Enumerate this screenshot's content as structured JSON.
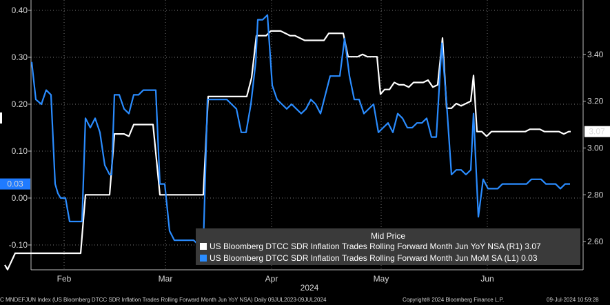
{
  "chart_data": {
    "type": "line",
    "xlabel": "2024",
    "x_tick_labels": [
      "Feb",
      "Mar",
      "Apr",
      "May",
      "Jun"
    ],
    "left_axis": {
      "ticks": [
        "-0.10",
        "0.00",
        "0.10",
        "0.20",
        "0.30",
        "0.40"
      ],
      "ylim": [
        -0.15,
        0.42
      ]
    },
    "right_axis": {
      "ticks": [
        "2.60",
        "2.80",
        "3.00",
        "3.20",
        "3.40"
      ],
      "ylim": [
        2.46,
        3.57
      ]
    },
    "last_value_labels": {
      "left": "0.03",
      "right": "3.07"
    },
    "legend": {
      "title": "Mid Price",
      "entries": [
        "US Bloomberg DTCC SDR Inflation Trades Rolling Forward Month Jun YoY NSA  (R1) 3.07",
        "US Bloomberg DTCC SDR Inflation Trades Rolling Forward Month Jun MoM SA  (L1)  0.03"
      ]
    },
    "series": [
      {
        "axis": "right",
        "color": "#ffffff",
        "values": [
          [
            7,
            2.5
          ],
          [
            11,
            2.48
          ],
          [
            22,
            2.55
          ],
          [
            25,
            2.55
          ],
          [
            38,
            2.55
          ],
          [
            41,
            2.55
          ],
          [
            57,
            2.55
          ],
          [
            60,
            2.55
          ],
          [
            73,
            2.55
          ],
          [
            76,
            2.55
          ],
          [
            86,
            2.55
          ],
          [
            90,
            2.55
          ],
          [
            95,
            2.55
          ],
          [
            101,
            2.55
          ],
          [
            110,
            2.55
          ],
          [
            117,
            2.55
          ],
          [
            124,
            2.8
          ],
          [
            131,
            2.8
          ],
          [
            138,
            2.8
          ],
          [
            145,
            2.8
          ],
          [
            152,
            2.8
          ],
          [
            159,
            2.8
          ],
          [
            166,
            3.06
          ],
          [
            173,
            3.06
          ],
          [
            180,
            3.06
          ],
          [
            187,
            3.05
          ],
          [
            194,
            3.1
          ],
          [
            201,
            3.1
          ],
          [
            208,
            3.1
          ],
          [
            215,
            3.1
          ],
          [
            222,
            3.1
          ],
          [
            232,
            2.8
          ],
          [
            239,
            2.8
          ],
          [
            246,
            2.8
          ],
          [
            253,
            2.8
          ],
          [
            260,
            2.8
          ],
          [
            267,
            2.8
          ],
          [
            274,
            2.8
          ],
          [
            281,
            2.8
          ],
          [
            288,
            2.8
          ],
          [
            295,
            2.8
          ],
          [
            302,
            3.22
          ],
          [
            309,
            3.22
          ],
          [
            316,
            3.22
          ],
          [
            323,
            3.22
          ],
          [
            330,
            3.22
          ],
          [
            337,
            3.22
          ],
          [
            344,
            3.22
          ],
          [
            351,
            3.22
          ],
          [
            358,
            3.22
          ],
          [
            365,
            3.3
          ],
          [
            372,
            3.48
          ],
          [
            379,
            3.48
          ],
          [
            386,
            3.48
          ],
          [
            393,
            3.5
          ],
          [
            400,
            3.5
          ],
          [
            407,
            3.5
          ],
          [
            414,
            3.49
          ],
          [
            421,
            3.48
          ],
          [
            428,
            3.48
          ],
          [
            435,
            3.47
          ],
          [
            442,
            3.46
          ],
          [
            449,
            3.46
          ],
          [
            456,
            3.46
          ],
          [
            463,
            3.46
          ],
          [
            470,
            3.46
          ],
          [
            477,
            3.49
          ],
          [
            484,
            3.49
          ],
          [
            491,
            3.49
          ],
          [
            498,
            3.49
          ],
          [
            505,
            3.39
          ],
          [
            512,
            3.39
          ],
          [
            519,
            3.39
          ],
          [
            526,
            3.4
          ],
          [
            533,
            3.39
          ],
          [
            540,
            3.39
          ],
          [
            547,
            3.39
          ],
          [
            552,
            3.23
          ],
          [
            558,
            3.25
          ],
          [
            565,
            3.25
          ],
          [
            572,
            3.28
          ],
          [
            579,
            3.27
          ],
          [
            586,
            3.27
          ],
          [
            593,
            3.26
          ],
          [
            600,
            3.28
          ],
          [
            607,
            3.28
          ],
          [
            614,
            3.28
          ],
          [
            621,
            3.29
          ],
          [
            628,
            3.26
          ],
          [
            635,
            3.27
          ],
          [
            642,
            3.47
          ],
          [
            648,
            3.17
          ],
          [
            655,
            3.17
          ],
          [
            662,
            3.19
          ],
          [
            669,
            3.18
          ],
          [
            676,
            3.19
          ],
          [
            683,
            3.2
          ],
          [
            687,
            3.31
          ],
          [
            692,
            3.07
          ],
          [
            699,
            3.07
          ],
          [
            706,
            3.05
          ],
          [
            713,
            3.07
          ],
          [
            720,
            3.07
          ],
          [
            727,
            3.07
          ],
          [
            734,
            3.07
          ],
          [
            741,
            3.07
          ],
          [
            748,
            3.07
          ],
          [
            755,
            3.07
          ],
          [
            762,
            3.07
          ],
          [
            769,
            3.08
          ],
          [
            776,
            3.08
          ],
          [
            783,
            3.08
          ],
          [
            790,
            3.07
          ],
          [
            797,
            3.07
          ],
          [
            804,
            3.07
          ],
          [
            811,
            3.07
          ],
          [
            818,
            3.06
          ],
          [
            825,
            3.07
          ],
          [
            828,
            3.07
          ]
        ]
      },
      {
        "axis": "left",
        "color": "#2a8cff",
        "values": [
          [
            46,
            0.29
          ],
          [
            52,
            0.21
          ],
          [
            60,
            0.2
          ],
          [
            67,
            0.23
          ],
          [
            74,
            0.22
          ],
          [
            80,
            0.03
          ],
          [
            84,
            0.01
          ],
          [
            88,
            0.0
          ],
          [
            95,
            0.0
          ],
          [
            101,
            -0.05
          ],
          [
            107,
            -0.05
          ],
          [
            113,
            -0.05
          ],
          [
            119,
            -0.05
          ],
          [
            124,
            0.17
          ],
          [
            131,
            0.15
          ],
          [
            138,
            0.17
          ],
          [
            145,
            0.14
          ],
          [
            152,
            0.07
          ],
          [
            159,
            0.05
          ],
          [
            162,
            0.05
          ],
          [
            166,
            0.22
          ],
          [
            173,
            0.22
          ],
          [
            180,
            0.19
          ],
          [
            187,
            0.18
          ],
          [
            194,
            0.22
          ],
          [
            201,
            0.22
          ],
          [
            208,
            0.23
          ],
          [
            215,
            0.23
          ],
          [
            222,
            0.23
          ],
          [
            226,
            0.23
          ],
          [
            232,
            0.03
          ],
          [
            239,
            0.03
          ],
          [
            246,
            -0.07
          ],
          [
            253,
            -0.09
          ],
          [
            260,
            -0.09
          ],
          [
            267,
            -0.09
          ],
          [
            274,
            -0.09
          ],
          [
            281,
            -0.09
          ],
          [
            288,
            -0.1
          ],
          [
            295,
            -0.1
          ],
          [
            301,
            0.21
          ],
          [
            308,
            0.21
          ],
          [
            315,
            0.21
          ],
          [
            322,
            0.21
          ],
          [
            329,
            0.21
          ],
          [
            336,
            0.2
          ],
          [
            343,
            0.19
          ],
          [
            350,
            0.14
          ],
          [
            357,
            0.14
          ],
          [
            364,
            0.2
          ],
          [
            371,
            0.29
          ],
          [
            374,
            0.38
          ],
          [
            381,
            0.38
          ],
          [
            388,
            0.39
          ],
          [
            395,
            0.24
          ],
          [
            402,
            0.21
          ],
          [
            409,
            0.2
          ],
          [
            416,
            0.19
          ],
          [
            423,
            0.2
          ],
          [
            430,
            0.19
          ],
          [
            437,
            0.18
          ],
          [
            444,
            0.19
          ],
          [
            451,
            0.21
          ],
          [
            458,
            0.2
          ],
          [
            465,
            0.18
          ],
          [
            472,
            0.22
          ],
          [
            479,
            0.26
          ],
          [
            486,
            0.26
          ],
          [
            493,
            0.26
          ],
          [
            500,
            0.34
          ],
          [
            507,
            0.26
          ],
          [
            514,
            0.21
          ],
          [
            521,
            0.21
          ],
          [
            528,
            0.18
          ],
          [
            535,
            0.19
          ],
          [
            542,
            0.2
          ],
          [
            549,
            0.14
          ],
          [
            556,
            0.15
          ],
          [
            563,
            0.16
          ],
          [
            570,
            0.14
          ],
          [
            577,
            0.18
          ],
          [
            584,
            0.17
          ],
          [
            591,
            0.15
          ],
          [
            598,
            0.15
          ],
          [
            605,
            0.16
          ],
          [
            612,
            0.16
          ],
          [
            619,
            0.17
          ],
          [
            626,
            0.13
          ],
          [
            633,
            0.13
          ],
          [
            641,
            0.33
          ],
          [
            648,
            0.2
          ],
          [
            655,
            0.05
          ],
          [
            662,
            0.06
          ],
          [
            669,
            0.06
          ],
          [
            676,
            0.05
          ],
          [
            683,
            0.06
          ],
          [
            687,
            0.18
          ],
          [
            694,
            -0.04
          ],
          [
            701,
            0.04
          ],
          [
            708,
            0.02
          ],
          [
            715,
            0.02
          ],
          [
            722,
            0.02
          ],
          [
            729,
            0.03
          ],
          [
            736,
            0.03
          ],
          [
            743,
            0.03
          ],
          [
            750,
            0.03
          ],
          [
            757,
            0.03
          ],
          [
            764,
            0.03
          ],
          [
            771,
            0.04
          ],
          [
            778,
            0.04
          ],
          [
            785,
            0.04
          ],
          [
            792,
            0.03
          ],
          [
            799,
            0.03
          ],
          [
            806,
            0.03
          ],
          [
            813,
            0.02
          ],
          [
            820,
            0.03
          ],
          [
            827,
            0.03
          ]
        ]
      }
    ]
  },
  "footer": {
    "left": "C MNDEFJUN Index (US Bloomberg DTCC SDR Inflation Trades Rolling Forward Month Jun YoY NSA)  Daily 09JUL2023-09JUL2024",
    "copyright": "Copyright® 2024 Bloomberg Finance L.P.",
    "timestamp": "09-Jul-2024 10:59:28"
  }
}
